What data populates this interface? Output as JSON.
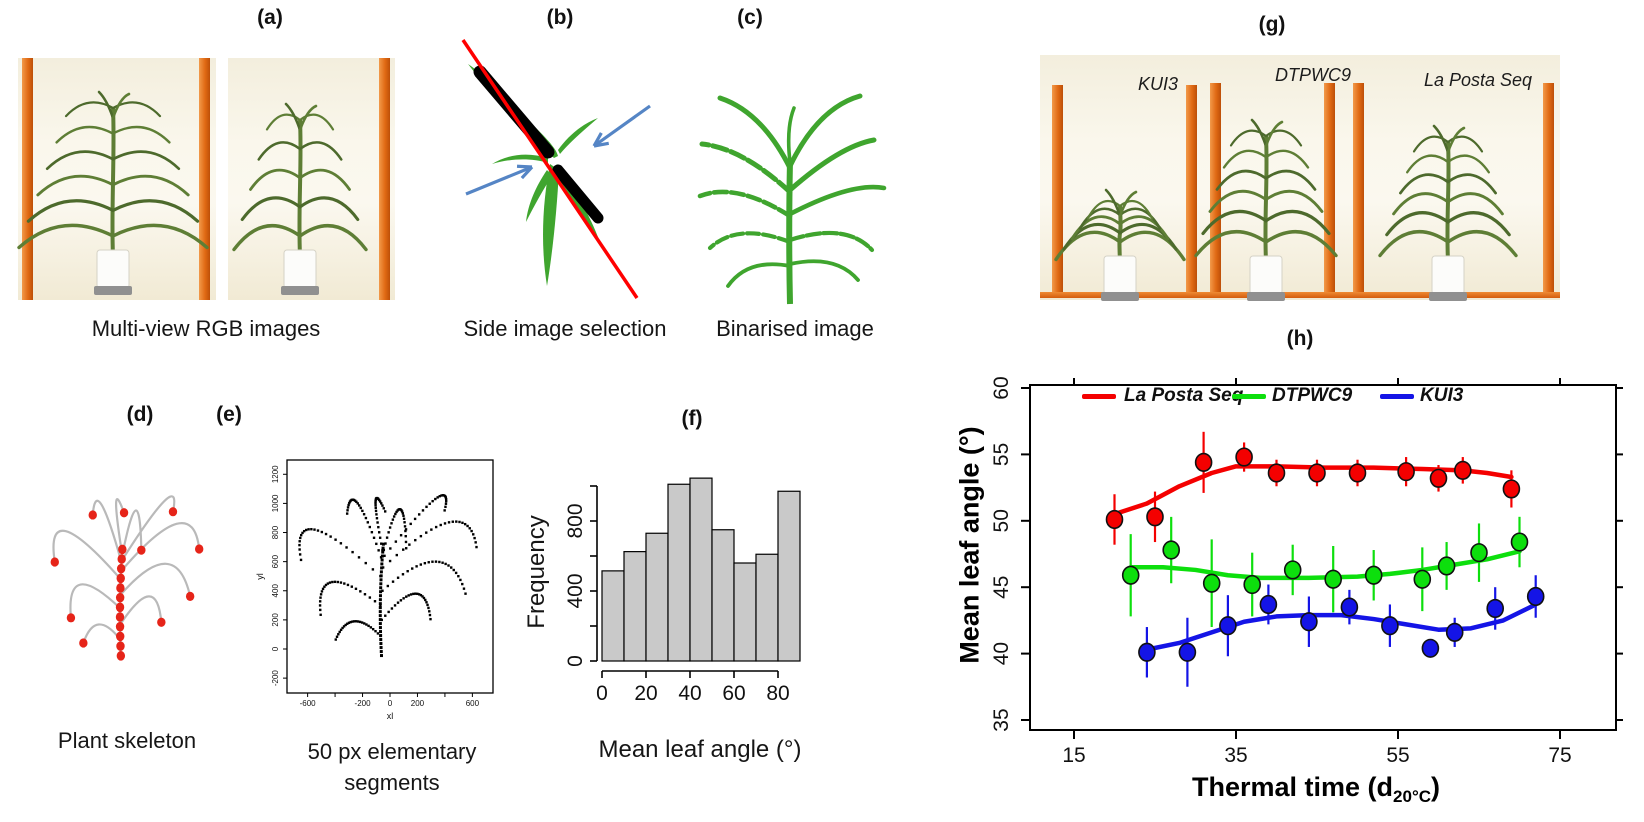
{
  "figure": {
    "background": "#ffffff"
  },
  "panels": {
    "a": {
      "label": "(a)",
      "caption": "Multi-view RGB images"
    },
    "b": {
      "label": "(b)",
      "caption": "Side image selection"
    },
    "c": {
      "label": "(c)",
      "caption": "Binarised image"
    },
    "d": {
      "label": "(d)",
      "caption": "Plant skeleton"
    },
    "e": {
      "label": "(e)",
      "caption_line1": "50 px elementary",
      "caption_line2": "segments"
    },
    "f": {
      "label": "(f)"
    },
    "g": {
      "label": "(g)",
      "genotypes": [
        "KUI3",
        "DTPWC9",
        "La Posta Seq"
      ]
    },
    "h": {
      "label": "(h)"
    }
  },
  "colors": {
    "pole_orange": "#e06a14",
    "photo_bg": "#f7f3e6",
    "plant_dark": "#4d6a2c",
    "plant_mid": "#5e7e35",
    "binarised_green": "#3fa52e",
    "overlay_red": "#ff0000",
    "arrow_blue": "#5585c5",
    "skeleton_gray": "#b9b9b9",
    "skeleton_red": "#e62419",
    "hist_fill": "#c9c9c9",
    "series_red": "#f40000",
    "series_green": "#0ddf0d",
    "series_blue": "#1414e6"
  },
  "chart_data": [
    {
      "type": "scatter",
      "panel": "e",
      "title": "",
      "xlabel": "xl",
      "ylabel": "yl",
      "xticks": [
        -600,
        -400,
        -200,
        0,
        200,
        400,
        600
      ],
      "xtick_labels": [
        "-600",
        "",
        "-200",
        "0",
        "200",
        "",
        "600"
      ],
      "yticks": [
        -200,
        0,
        200,
        400,
        600,
        800,
        1000,
        1200
      ],
      "xlim": [
        -750,
        750
      ],
      "ylim": [
        -300,
        1300
      ],
      "description": "Plant skeleton sampled into 50 px elementary segments (black point chains)",
      "stem": {
        "s": [
          -62,
          -45
        ],
        "c": [
          -85,
          340
        ],
        "e": [
          -48,
          720
        ]
      },
      "leaves": [
        {
          "s": [
            -70,
            90
          ],
          "p": [
            -260,
            190
          ],
          "e": [
            -395,
            65
          ]
        },
        {
          "s": [
            -60,
            200
          ],
          "p": [
            185,
            380
          ],
          "e": [
            295,
            205
          ]
        },
        {
          "s": [
            -70,
            300
          ],
          "p": [
            -420,
            460
          ],
          "e": [
            -505,
            235
          ]
        },
        {
          "s": [
            -55,
            400
          ],
          "p": [
            335,
            600
          ],
          "e": [
            550,
            380
          ]
        },
        {
          "s": [
            -70,
            500
          ],
          "p": [
            -550,
            820
          ],
          "e": [
            -648,
            612
          ]
        },
        {
          "s": [
            -50,
            560
          ],
          "p": [
            430,
            870
          ],
          "e": [
            630,
            700
          ]
        },
        {
          "s": [
            -65,
            630
          ],
          "p": [
            -235,
            1000
          ],
          "e": [
            -312,
            930
          ]
        },
        {
          "s": [
            -55,
            680
          ],
          "p": [
            -105,
            1015
          ],
          "e": [
            -35,
            945
          ]
        },
        {
          "s": [
            -45,
            680
          ],
          "p": [
            70,
            960
          ],
          "e": [
            118,
            692
          ]
        },
        {
          "s": [
            -40,
            640
          ],
          "p": [
            330,
            1030
          ],
          "e": [
            398,
            952
          ]
        }
      ]
    },
    {
      "type": "bar",
      "panel": "f",
      "title": "",
      "xlabel": "Mean leaf angle (°)",
      "ylabel": "Frequency",
      "bin_start": 0,
      "bin_width": 10,
      "categories": [
        "0-10",
        "10-20",
        "20-30",
        "30-40",
        "40-50",
        "50-60",
        "60-70",
        "70-80",
        "80-90"
      ],
      "values": [
        515,
        625,
        730,
        1010,
        1045,
        750,
        560,
        610,
        970
      ],
      "xticks": [
        0,
        20,
        40,
        60,
        80
      ],
      "yticks": [
        0,
        200,
        400,
        600,
        800,
        1000
      ],
      "ytick_labels": [
        "0",
        "",
        "400",
        "",
        "800",
        ""
      ],
      "ylim": [
        0,
        1060
      ],
      "grid": false
    },
    {
      "type": "line-scatter",
      "panel": "h",
      "title": "",
      "xlabel": "Thermal time (d20°C)",
      "xlabel_parts": {
        "pre": "Thermal time (d",
        "sub": "20°C",
        "post": ")"
      },
      "ylabel": "Mean leaf angle (°)",
      "xticks": [
        15,
        35,
        55,
        75
      ],
      "yticks": [
        35,
        40,
        45,
        50,
        55,
        60
      ],
      "xlim": [
        10,
        82
      ],
      "ylim": [
        34.2,
        60.3
      ],
      "grid": false,
      "legend_position": "top-inside",
      "series": [
        {
          "name": "La Posta Seq",
          "color": "#f40000",
          "x": [
            20,
            25,
            31,
            36,
            40,
            45,
            50,
            56,
            60,
            63,
            69
          ],
          "y": [
            50.1,
            50.3,
            54.4,
            54.8,
            53.6,
            53.6,
            53.6,
            53.7,
            53.2,
            53.8,
            52.4
          ],
          "err": [
            1.9,
            1.9,
            2.3,
            1.1,
            1.0,
            1.0,
            1.0,
            1.1,
            1.0,
            1.0,
            1.4
          ],
          "trend": [
            [
              20,
              50.5
            ],
            [
              24,
              51.3
            ],
            [
              28,
              52.6
            ],
            [
              32,
              53.6
            ],
            [
              35,
              54.1
            ],
            [
              40,
              54.1
            ],
            [
              46,
              54.0
            ],
            [
              52,
              54.0
            ],
            [
              58,
              53.9
            ],
            [
              63,
              53.8
            ],
            [
              66,
              53.6
            ],
            [
              69,
              53.3
            ]
          ]
        },
        {
          "name": "DTPWC9",
          "color": "#0ddf0d",
          "x": [
            22,
            27,
            32,
            37,
            42,
            47,
            52,
            58,
            61,
            65,
            70
          ],
          "y": [
            45.9,
            47.8,
            45.3,
            45.2,
            46.3,
            45.6,
            45.9,
            45.6,
            46.6,
            47.6,
            48.4
          ],
          "err": [
            3.1,
            2.5,
            3.3,
            2.4,
            1.9,
            2.5,
            1.9,
            2.4,
            1.8,
            2.2,
            1.9
          ],
          "trend": [
            [
              22,
              46.5
            ],
            [
              26,
              46.5
            ],
            [
              30,
              46.3
            ],
            [
              34,
              45.9
            ],
            [
              38,
              45.7
            ],
            [
              44,
              45.7
            ],
            [
              50,
              45.8
            ],
            [
              54,
              46.0
            ],
            [
              58,
              46.3
            ],
            [
              62,
              46.7
            ],
            [
              66,
              47.1
            ],
            [
              70,
              47.7
            ]
          ]
        },
        {
          "name": "KUI3",
          "color": "#1414e6",
          "x": [
            24,
            29,
            34,
            39,
            44,
            49,
            54,
            59,
            62,
            67,
            72
          ],
          "y": [
            40.1,
            40.1,
            42.1,
            43.7,
            42.4,
            43.5,
            42.1,
            40.4,
            41.6,
            43.4,
            44.3
          ],
          "err": [
            1.9,
            2.6,
            2.3,
            1.5,
            1.9,
            1.3,
            1.6,
            0.7,
            1.1,
            1.6,
            1.6
          ],
          "trend": [
            [
              24,
              40.3
            ],
            [
              28,
              40.8
            ],
            [
              32,
              41.6
            ],
            [
              36,
              42.4
            ],
            [
              40,
              42.8
            ],
            [
              44,
              42.9
            ],
            [
              48,
              42.9
            ],
            [
              52,
              42.6
            ],
            [
              56,
              42.2
            ],
            [
              60,
              41.8
            ],
            [
              64,
              41.9
            ],
            [
              68,
              42.5
            ],
            [
              72,
              43.7
            ]
          ]
        }
      ]
    }
  ]
}
